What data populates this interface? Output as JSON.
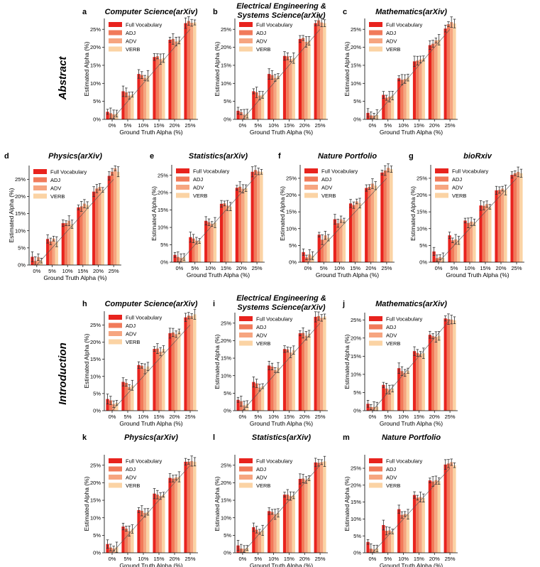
{
  "colors": {
    "Full Vocabulary": "#e8231e",
    "ADJ": "#f17a5a",
    "ADV": "#f6a580",
    "VERB": "#fbd3a4"
  },
  "sections": {
    "abstract": "Abstract",
    "introduction": "Introduction"
  },
  "chart_data": [
    {
      "id": "a",
      "letter": "a",
      "type": "bar",
      "title": "Computer Science(arXiv)",
      "title2": "",
      "xlabel": "Ground Truth Alpha (%)",
      "ylabel": "Estimated Alpha (%)",
      "categories": [
        "0%",
        "5%",
        "10%",
        "15%",
        "20%",
        "25%"
      ],
      "ylim": [
        0,
        28
      ],
      "yticks": [
        "0%",
        "5%",
        "10%",
        "15%",
        "20%",
        "25%"
      ],
      "legend": [
        "Full Vocabulary",
        "ADJ",
        "ADV",
        "VERB"
      ],
      "series": [
        {
          "name": "Full Vocabulary",
          "values": [
            2.1,
            7.8,
            12.6,
            17.3,
            22.1,
            26.7
          ]
        },
        {
          "name": "ADJ",
          "values": [
            1.7,
            7.5,
            12.3,
            17.5,
            22.3,
            27.3
          ]
        },
        {
          "name": "ADV",
          "values": [
            1.4,
            6.6,
            11.5,
            16.7,
            21.6,
            26.8
          ]
        },
        {
          "name": "VERB",
          "values": [
            1.6,
            6.9,
            12.1,
            17.0,
            21.9,
            26.9
          ]
        }
      ]
    },
    {
      "id": "b",
      "letter": "b",
      "type": "bar",
      "title": "Electrical Engineering &",
      "title2": "Systems Science(arXiv)",
      "xlabel": "Ground Truth Alpha (%)",
      "ylabel": "Estimated Alpha (%)",
      "categories": [
        "0%",
        "5%",
        "10%",
        "15%",
        "20%",
        "25%"
      ],
      "ylim": [
        0,
        28
      ],
      "yticks": [
        "0%",
        "5%",
        "10%",
        "15%",
        "20%",
        "25%"
      ],
      "legend": [
        "Full Vocabulary",
        "ADJ",
        "ADV",
        "VERB"
      ],
      "series": [
        {
          "name": "Full Vocabulary",
          "values": [
            2.4,
            7.8,
            12.6,
            17.6,
            22.3,
            26.7
          ]
        },
        {
          "name": "ADJ",
          "values": [
            2.0,
            7.5,
            12.3,
            17.5,
            22.6,
            27.5
          ]
        },
        {
          "name": "ADV",
          "values": [
            1.3,
            6.6,
            11.5,
            16.7,
            21.5,
            26.9
          ]
        },
        {
          "name": "VERB",
          "values": [
            1.6,
            6.8,
            12.0,
            17.0,
            21.8,
            26.7
          ]
        }
      ]
    },
    {
      "id": "c",
      "letter": "c",
      "type": "bar",
      "title": "Mathematics(arXiv)",
      "title2": "",
      "xlabel": "Ground Truth Alpha (%)",
      "ylabel": "Estimated Alpha (%)",
      "categories": [
        "0%",
        "5%",
        "10%",
        "15%",
        "20%",
        "25%"
      ],
      "ylim": [
        0,
        28
      ],
      "yticks": [
        "0%",
        "5%",
        "10%",
        "15%",
        "20%",
        "25%"
      ],
      "legend": [
        "Full Vocabulary",
        "ADJ",
        "ADV",
        "VERB"
      ],
      "series": [
        {
          "name": "Full Vocabulary",
          "values": [
            1.8,
            6.8,
            11.4,
            16.1,
            20.6,
            25.2
          ]
        },
        {
          "name": "ADJ",
          "values": [
            1.1,
            6.0,
            11.0,
            16.3,
            21.0,
            26.4
          ]
        },
        {
          "name": "ADV",
          "values": [
            1.0,
            6.3,
            11.2,
            16.6,
            21.9,
            27.0
          ]
        },
        {
          "name": "VERB",
          "values": [
            1.2,
            6.6,
            11.6,
            16.9,
            22.1,
            26.6
          ]
        }
      ]
    },
    {
      "id": "d",
      "letter": "d",
      "type": "bar",
      "title": "Physics(arXiv)",
      "title2": "",
      "xlabel": "Ground Truth Alpha (%)",
      "ylabel": "Estimated Alpha (%)",
      "categories": [
        "0%",
        "5%",
        "10%",
        "15%",
        "20%",
        "25%"
      ],
      "ylim": [
        0,
        29
      ],
      "yticks": [
        "0%",
        "5%",
        "10%",
        "15%",
        "20%",
        "25%"
      ],
      "legend": [
        "Full Vocabulary",
        "ADJ",
        "ADV",
        "VERB"
      ],
      "series": [
        {
          "name": "Full Vocabulary",
          "values": [
            2.4,
            7.6,
            12.2,
            16.8,
            21.4,
            26.0
          ]
        },
        {
          "name": "ADJ",
          "values": [
            1.2,
            6.9,
            12.2,
            17.1,
            22.3,
            27.2
          ]
        },
        {
          "name": "ADV",
          "values": [
            2.3,
            7.7,
            12.9,
            17.9,
            22.8,
            28.2
          ]
        },
        {
          "name": "VERB",
          "values": [
            1.3,
            6.8,
            11.9,
            17.5,
            21.9,
            27.2
          ]
        }
      ]
    },
    {
      "id": "e",
      "letter": "e",
      "type": "bar",
      "title": "Statistics(arXiv)",
      "title2": "",
      "xlabel": "Ground Truth Alpha (%)",
      "ylabel": "Estimated Alpha (%)",
      "categories": [
        "0%",
        "5%",
        "10%",
        "15%",
        "20%",
        "25%"
      ],
      "ylim": [
        0,
        28
      ],
      "yticks": [
        "0%",
        "5%",
        "10%",
        "15%",
        "20%",
        "25%"
      ],
      "legend": [
        "Full Vocabulary",
        "ADJ",
        "ADV",
        "VERB"
      ],
      "series": [
        {
          "name": "Full Vocabulary",
          "values": [
            2.1,
            7.2,
            11.9,
            16.8,
            21.4,
            26.0
          ]
        },
        {
          "name": "ADJ",
          "values": [
            1.5,
            6.8,
            11.5,
            16.9,
            21.7,
            26.5
          ]
        },
        {
          "name": "ADV",
          "values": [
            1.2,
            6.2,
            11.0,
            16.3,
            21.1,
            26.1
          ]
        },
        {
          "name": "VERB",
          "values": [
            1.5,
            6.1,
            11.4,
            16.0,
            21.3,
            26.0
          ]
        }
      ]
    },
    {
      "id": "f",
      "letter": "f",
      "type": "bar",
      "title": "Nature Portfolio",
      "title2": "",
      "xlabel": "Ground Truth Alpha (%)",
      "ylabel": "Estimated Alpha (%)",
      "categories": [
        "0%",
        "5%",
        "10%",
        "15%",
        "20%",
        "25%"
      ],
      "ylim": [
        0,
        29
      ],
      "yticks": [
        "0%",
        "5%",
        "10%",
        "15%",
        "20%",
        "25%"
      ],
      "legend": [
        "Full Vocabulary",
        "ADJ",
        "ADV",
        "VERB"
      ],
      "series": [
        {
          "name": "Full Vocabulary",
          "values": [
            3.0,
            8.2,
            12.8,
            17.5,
            22.1,
            26.7
          ]
        },
        {
          "name": "ADJ",
          "values": [
            1.4,
            6.7,
            11.6,
            17.0,
            22.4,
            27.3
          ]
        },
        {
          "name": "ADV",
          "values": [
            2.3,
            8.0,
            12.8,
            18.1,
            23.4,
            28.1
          ]
        },
        {
          "name": "VERB",
          "values": [
            1.9,
            7.3,
            12.4,
            17.6,
            22.8,
            27.7
          ]
        }
      ]
    },
    {
      "id": "g",
      "letter": "g",
      "type": "bar",
      "title": "bioRxiv",
      "title2": "",
      "xlabel": "Ground Truth Alpha (%)",
      "ylabel": "Estimated Alpha (%)",
      "categories": [
        "0%",
        "5%",
        "10%",
        "15%",
        "20%",
        "25%"
      ],
      "ylim": [
        0,
        29
      ],
      "yticks": [
        "0%",
        "5%",
        "10%",
        "15%",
        "20%",
        "25%"
      ],
      "legend": [
        "Full Vocabulary",
        "ADJ",
        "ADV",
        "VERB"
      ],
      "series": [
        {
          "name": "Full Vocabulary",
          "values": [
            3.2,
            8.0,
            12.4,
            16.9,
            21.4,
            26.0
          ]
        },
        {
          "name": "ADJ",
          "values": [
            1.2,
            6.5,
            11.7,
            16.8,
            21.5,
            26.5
          ]
        },
        {
          "name": "ADV",
          "values": [
            1.5,
            6.8,
            12.1,
            17.3,
            21.9,
            26.9
          ]
        },
        {
          "name": "VERB",
          "values": [
            1.3,
            6.5,
            11.9,
            16.5,
            21.5,
            26.5
          ]
        }
      ]
    },
    {
      "id": "h",
      "letter": "h",
      "type": "bar",
      "title": "Computer Science(arXiv)",
      "title2": "",
      "xlabel": "Ground Truth Alpha (%)",
      "ylabel": "Estimated Alpha (%)",
      "categories": [
        "0%",
        "5%",
        "10%",
        "15%",
        "20%",
        "25%"
      ],
      "ylim": [
        0,
        29
      ],
      "yticks": [
        "0%",
        "5%",
        "10%",
        "15%",
        "20%",
        "25%"
      ],
      "legend": [
        "Full Vocabulary",
        "ADJ",
        "ADV",
        "VERB"
      ],
      "series": [
        {
          "name": "Full Vocabulary",
          "values": [
            3.4,
            8.4,
            13.3,
            18.0,
            22.6,
            27.2
          ]
        },
        {
          "name": "ADJ",
          "values": [
            3.0,
            8.1,
            13.1,
            18.1,
            22.8,
            27.7
          ]
        },
        {
          "name": "ADV",
          "values": [
            1.9,
            6.9,
            12.2,
            17.2,
            22.3,
            27.6
          ]
        },
        {
          "name": "VERB",
          "values": [
            2.3,
            7.4,
            12.9,
            18.0,
            23.1,
            28.1
          ]
        }
      ]
    },
    {
      "id": "i",
      "letter": "i",
      "type": "bar",
      "title": "Electrical Engineering &",
      "title2": "Systems Science(arXiv)",
      "xlabel": "Ground Truth Alpha (%)",
      "ylabel": "Estimated Alpha (%)",
      "categories": [
        "0%",
        "5%",
        "10%",
        "15%",
        "20%",
        "25%"
      ],
      "ylim": [
        0,
        28
      ],
      "yticks": [
        "0%",
        "5%",
        "10%",
        "15%",
        "20%",
        "25%"
      ],
      "legend": [
        "Full Vocabulary",
        "ADJ",
        "ADV",
        "VERB"
      ],
      "series": [
        {
          "name": "Full Vocabulary",
          "values": [
            3.1,
            8.2,
            12.9,
            17.6,
            22.1,
            26.8
          ]
        },
        {
          "name": "ADJ",
          "values": [
            2.7,
            7.8,
            12.6,
            17.5,
            22.2,
            27.0
          ]
        },
        {
          "name": "ADV",
          "values": [
            1.5,
            6.6,
            11.6,
            16.6,
            21.4,
            26.5
          ]
        },
        {
          "name": "VERB",
          "values": [
            1.9,
            7.0,
            12.3,
            17.3,
            22.0,
            26.9
          ]
        }
      ]
    },
    {
      "id": "j",
      "letter": "j",
      "type": "bar",
      "title": "Mathematics(arXiv)",
      "title2": "",
      "xlabel": "Ground Truth Alpha (%)",
      "ylabel": "Estimated Alpha (%)",
      "categories": [
        "0%",
        "5%",
        "10%",
        "15%",
        "20%",
        "25%"
      ],
      "ylim": [
        0,
        27
      ],
      "yticks": [
        "0%",
        "5%",
        "10%",
        "15%",
        "20%",
        "25%"
      ],
      "legend": [
        "Full Vocabulary",
        "ADJ",
        "ADV",
        "VERB"
      ],
      "series": [
        {
          "name": "Full Vocabulary",
          "values": [
            1.9,
            7.1,
            11.7,
            16.4,
            20.9,
            25.4
          ]
        },
        {
          "name": "ADJ",
          "values": [
            1.0,
            6.1,
            10.9,
            15.9,
            20.5,
            25.2
          ]
        },
        {
          "name": "ADV",
          "values": [
            1.0,
            5.8,
            10.4,
            15.6,
            20.3,
            25.1
          ]
        },
        {
          "name": "VERB",
          "values": [
            1.1,
            6.1,
            11.0,
            15.8,
            20.6,
            24.9
          ]
        }
      ]
    },
    {
      "id": "k",
      "letter": "k",
      "type": "bar",
      "title": "Physics(arXiv)",
      "title2": "",
      "xlabel": "Ground Truth Alpha (%)",
      "ylabel": "Estimated Alpha (%)",
      "categories": [
        "0%",
        "5%",
        "10%",
        "15%",
        "20%",
        "25%"
      ],
      "ylim": [
        0,
        28
      ],
      "yticks": [
        "0%",
        "5%",
        "10%",
        "15%",
        "20%",
        "25%"
      ],
      "legend": [
        "Full Vocabulary",
        "ADJ",
        "ADV",
        "VERB"
      ],
      "series": [
        {
          "name": "Full Vocabulary",
          "values": [
            2.5,
            7.5,
            12.2,
            16.9,
            21.4,
            26.0
          ]
        },
        {
          "name": "ADJ",
          "values": [
            1.5,
            6.9,
            12.0,
            16.6,
            21.2,
            26.0
          ]
        },
        {
          "name": "ADV",
          "values": [
            1.2,
            6.2,
            11.4,
            16.2,
            21.5,
            26.2
          ]
        },
        {
          "name": "VERB",
          "values": [
            1.6,
            6.8,
            11.7,
            16.6,
            21.7,
            26.0
          ]
        }
      ]
    },
    {
      "id": "l",
      "letter": "l",
      "type": "bar",
      "title": "Statistics(arXiv)",
      "title2": "",
      "xlabel": "Ground Truth Alpha (%)",
      "ylabel": "Estimated Alpha (%)",
      "categories": [
        "0%",
        "5%",
        "10%",
        "15%",
        "20%",
        "25%"
      ],
      "ylim": [
        0,
        28
      ],
      "yticks": [
        "0%",
        "5%",
        "10%",
        "15%",
        "20%",
        "25%"
      ],
      "legend": [
        "Full Vocabulary",
        "ADJ",
        "ADV",
        "VERB"
      ],
      "series": [
        {
          "name": "Full Vocabulary",
          "values": [
            2.1,
            7.3,
            11.9,
            16.6,
            21.1,
            25.8
          ]
        },
        {
          "name": "ADJ",
          "values": [
            1.2,
            6.6,
            11.7,
            16.6,
            21.2,
            25.7
          ]
        },
        {
          "name": "ADV",
          "values": [
            1.1,
            6.0,
            11.0,
            16.2,
            20.8,
            25.9
          ]
        },
        {
          "name": "VERB",
          "values": [
            1.4,
            6.4,
            11.4,
            16.4,
            21.3,
            26.1
          ]
        }
      ]
    },
    {
      "id": "m",
      "letter": "m",
      "type": "bar",
      "title": "Nature Portfolio",
      "title2": "",
      "xlabel": "Ground Truth Alpha (%)",
      "ylabel": "Estimated Alpha (%)",
      "categories": [
        "0%",
        "5%",
        "10%",
        "15%",
        "20%",
        "25%"
      ],
      "ylim": [
        0,
        29
      ],
      "yticks": [
        "0%",
        "5%",
        "10%",
        "15%",
        "20%",
        "25%"
      ],
      "legend": [
        "Full Vocabulary",
        "ADJ",
        "ADV",
        "VERB"
      ],
      "series": [
        {
          "name": "Full Vocabulary",
          "values": [
            3.2,
            8.2,
            12.9,
            17.1,
            21.4,
            26.1
          ]
        },
        {
          "name": "ADJ",
          "values": [
            1.2,
            6.5,
            11.2,
            16.3,
            21.1,
            26.4
          ]
        },
        {
          "name": "ADV",
          "values": [
            1.0,
            6.6,
            11.5,
            16.5,
            21.5,
            26.8
          ]
        },
        {
          "name": "VERB",
          "values": [
            1.3,
            6.3,
            11.4,
            16.2,
            21.2,
            25.9
          ]
        }
      ]
    }
  ]
}
